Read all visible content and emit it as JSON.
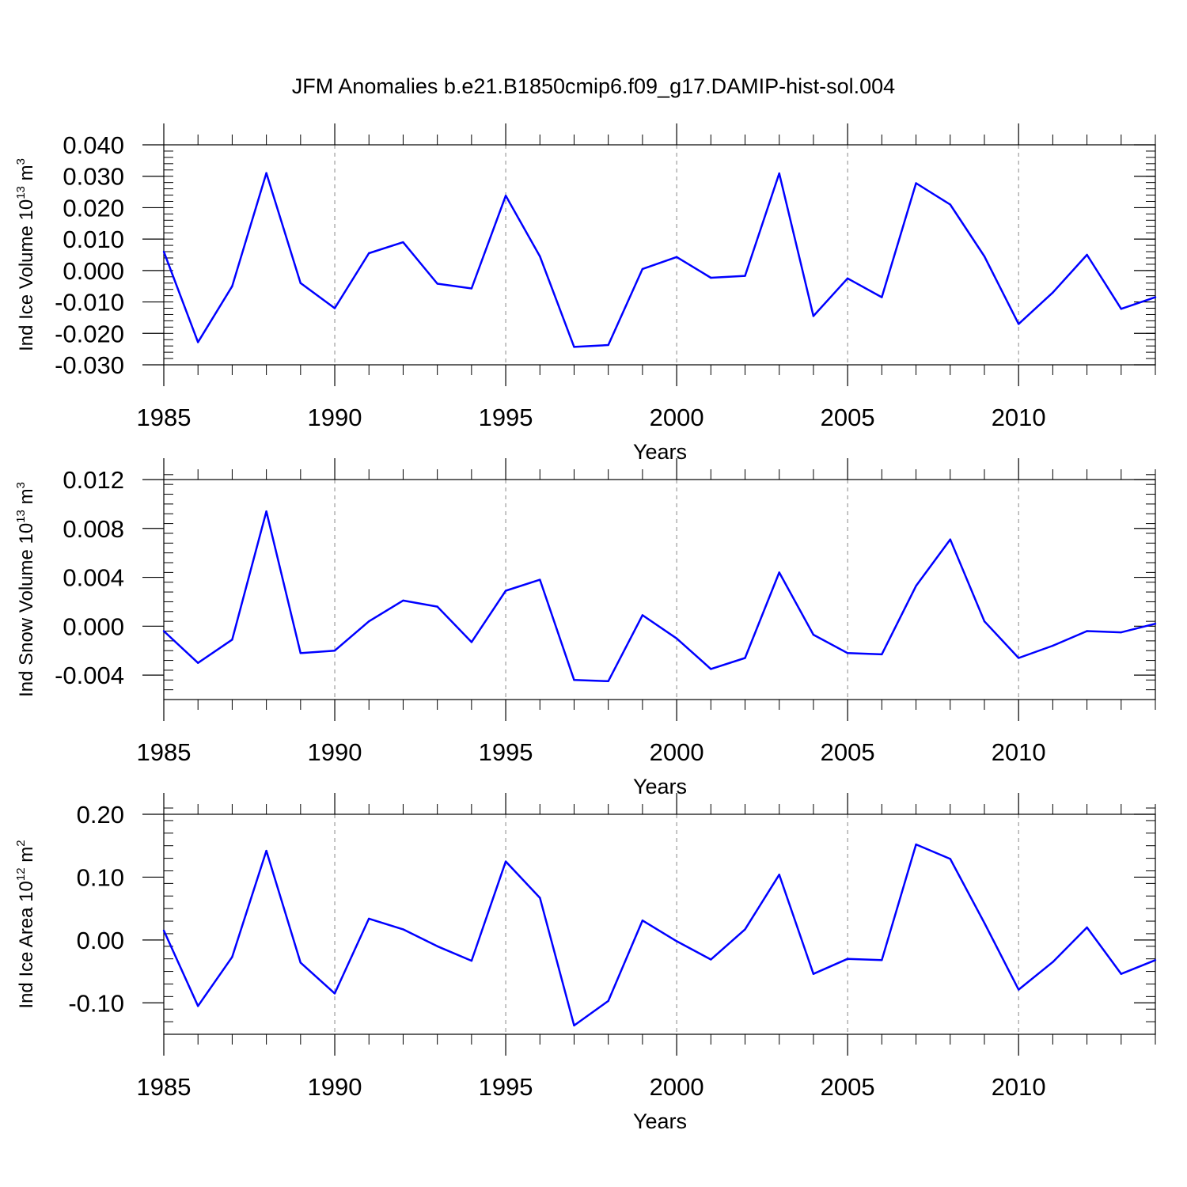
{
  "figure": {
    "title": "JFM Anomalies b.e21.B1850cmip6.f09_g17.DAMIP-hist-sol.004"
  },
  "colors": {
    "line": "#0000ff",
    "frame": "#000000",
    "grid": "#888888"
  },
  "chart_data": [
    {
      "type": "line",
      "ylabel": {
        "text": "Ind Ice Volume 10",
        "sup": "13",
        "unit": " m",
        "unit_sup": "3"
      },
      "xlabel": "Years",
      "xlim": [
        1985,
        2014
      ],
      "ylim": [
        -0.03,
        0.04
      ],
      "x_ticks": [
        1985,
        1990,
        1995,
        2000,
        2005,
        2010
      ],
      "x_tick_labels": [
        "1985",
        "1990",
        "1995",
        "2000",
        "2005",
        "2010"
      ],
      "y_ticks": [
        -0.03,
        -0.02,
        -0.01,
        0.0,
        0.01,
        0.02,
        0.03,
        0.04
      ],
      "y_tick_labels": [
        "-0.030",
        "-0.020",
        "-0.010",
        "0.000",
        "0.010",
        "0.020",
        "0.030",
        "0.040"
      ],
      "x": [
        1985,
        1986,
        1987,
        1988,
        1989,
        1990,
        1991,
        1992,
        1993,
        1994,
        1995,
        1996,
        1997,
        1998,
        1999,
        2000,
        2001,
        2002,
        2003,
        2004,
        2005,
        2006,
        2007,
        2008,
        2009,
        2010,
        2011,
        2012,
        2013,
        2014
      ],
      "values": [
        0.006,
        -0.0228,
        -0.005,
        0.031,
        -0.004,
        -0.012,
        0.0055,
        0.009,
        -0.0042,
        -0.0057,
        0.0238,
        0.0045,
        -0.0243,
        -0.0237,
        0.0005,
        0.0043,
        -0.0023,
        -0.0017,
        0.0309,
        -0.0145,
        -0.0025,
        -0.0085,
        0.0278,
        0.021,
        0.0045,
        -0.017,
        -0.007,
        0.005,
        -0.0122,
        -0.0085
      ]
    },
    {
      "type": "line",
      "ylabel": {
        "text": "Ind Snow Volume 10",
        "sup": "13",
        "unit": " m",
        "unit_sup": "3"
      },
      "xlabel": "Years",
      "xlim": [
        1985,
        2014
      ],
      "ylim": [
        -0.006,
        0.012
      ],
      "x_ticks": [
        1985,
        1990,
        1995,
        2000,
        2005,
        2010
      ],
      "x_tick_labels": [
        "1985",
        "1990",
        "1995",
        "2000",
        "2005",
        "2010"
      ],
      "y_ticks": [
        -0.004,
        0.0,
        0.004,
        0.008,
        0.012
      ],
      "y_tick_labels": [
        "-0.004",
        "0.000",
        "0.004",
        "0.008",
        "0.012"
      ],
      "x": [
        1985,
        1986,
        1987,
        1988,
        1989,
        1990,
        1991,
        1992,
        1993,
        1994,
        1995,
        1996,
        1997,
        1998,
        1999,
        2000,
        2001,
        2002,
        2003,
        2004,
        2005,
        2006,
        2007,
        2008,
        2009,
        2010,
        2011,
        2012,
        2013,
        2014
      ],
      "values": [
        -0.0004,
        -0.003,
        -0.0011,
        0.0094,
        -0.0022,
        -0.002,
        0.0004,
        0.0021,
        0.0016,
        -0.0013,
        0.0029,
        0.0038,
        -0.0044,
        -0.0045,
        0.0009,
        -0.001,
        -0.0035,
        -0.0026,
        0.0044,
        -0.0007,
        -0.0022,
        -0.0023,
        0.0033,
        0.0071,
        0.0004,
        -0.0026,
        -0.0016,
        -0.0004,
        -0.0005,
        0.0002
      ]
    },
    {
      "type": "line",
      "ylabel": {
        "text": "Ind Ice Area 10",
        "sup": "12",
        "unit": " m",
        "unit_sup": "2"
      },
      "xlabel": "Years",
      "xlim": [
        1985,
        2014
      ],
      "ylim": [
        -0.15,
        0.2
      ],
      "x_ticks": [
        1985,
        1990,
        1995,
        2000,
        2005,
        2010
      ],
      "x_tick_labels": [
        "1985",
        "1990",
        "1995",
        "2000",
        "2005",
        "2010"
      ],
      "y_ticks": [
        -0.1,
        0.0,
        0.1,
        0.2
      ],
      "y_tick_labels": [
        "-0.10",
        "0.00",
        "0.10",
        "0.20"
      ],
      "x": [
        1985,
        1986,
        1987,
        1988,
        1989,
        1990,
        1991,
        1992,
        1993,
        1994,
        1995,
        1996,
        1997,
        1998,
        1999,
        2000,
        2001,
        2002,
        2003,
        2004,
        2005,
        2006,
        2007,
        2008,
        2009,
        2010,
        2011,
        2012,
        2013,
        2014
      ],
      "values": [
        0.015,
        -0.105,
        -0.027,
        0.142,
        -0.036,
        -0.085,
        0.034,
        0.017,
        -0.01,
        -0.033,
        0.125,
        0.067,
        -0.136,
        -0.097,
        0.031,
        -0.002,
        -0.031,
        0.017,
        0.104,
        -0.054,
        -0.03,
        -0.032,
        0.152,
        0.129,
        0.027,
        -0.079,
        -0.035,
        0.02,
        -0.054,
        -0.032
      ]
    }
  ]
}
